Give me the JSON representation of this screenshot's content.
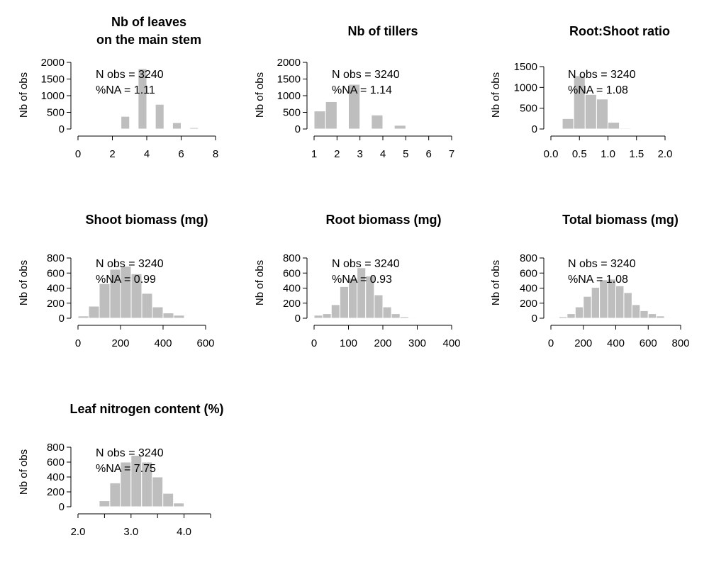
{
  "bar_color": "#bebebe",
  "bar_edge_color": "#ffffff",
  "chart_data": [
    {
      "type": "bar",
      "title_lines": [
        "Nb of leaves",
        "on the main stem"
      ],
      "ylabel": "Nb of obs",
      "annotation": [
        "N obs =  3240",
        "%NA = 1.11"
      ],
      "xlim": [
        0,
        8
      ],
      "ylim": [
        0,
        2000
      ],
      "xticks": [
        0,
        2,
        4,
        6,
        8
      ],
      "xtick_labels": [
        "0",
        "2",
        "4",
        "6",
        "8"
      ],
      "yticks": [
        0,
        500,
        1000,
        1500,
        2000
      ],
      "ytick_labels": [
        "0",
        "500",
        "1000",
        "1500",
        "2000"
      ],
      "bins": [
        [
          2.5,
          3
        ],
        [
          3.5,
          4
        ],
        [
          4.5,
          5
        ],
        [
          5.5,
          6
        ],
        [
          6.5,
          7
        ]
      ],
      "values": [
        380,
        1810,
        740,
        190,
        40
      ]
    },
    {
      "type": "bar",
      "title_lines": [
        "Nb of tillers"
      ],
      "ylabel": "Nb of obs",
      "annotation": [
        "N obs =  3240",
        "%NA = 1.14"
      ],
      "xlim": [
        1,
        7
      ],
      "ylim": [
        0,
        2000
      ],
      "xticks": [
        1,
        2,
        3,
        4,
        5,
        6,
        7
      ],
      "xtick_labels": [
        "1",
        "2",
        "3",
        "4",
        "5",
        "6",
        "7"
      ],
      "yticks": [
        0,
        500,
        1000,
        1500,
        2000
      ],
      "ytick_labels": [
        "0",
        "500",
        "1000",
        "1500",
        "2000"
      ],
      "bins": [
        [
          1,
          1.5
        ],
        [
          1.5,
          2
        ],
        [
          2.5,
          3
        ],
        [
          3.5,
          4
        ],
        [
          4.5,
          5
        ]
      ],
      "values": [
        540,
        820,
        1340,
        420,
        110
      ]
    },
    {
      "type": "bar",
      "title_lines": [
        "Root:Shoot ratio"
      ],
      "ylabel": "Nb of obs",
      "annotation": [
        "N obs =  3240",
        "%NA = 1.08"
      ],
      "xlim": [
        0,
        2
      ],
      "ylim": [
        0,
        1500
      ],
      "xticks": [
        0,
        0.5,
        1,
        1.5,
        2
      ],
      "xtick_labels": [
        "0.0",
        "0.5",
        "1.0",
        "1.5",
        "2.0"
      ],
      "yticks": [
        0,
        500,
        1000,
        1500
      ],
      "ytick_labels": [
        "0",
        "500",
        "1000",
        "1500"
      ],
      "bins": [
        [
          0.2,
          0.4
        ],
        [
          0.4,
          0.6
        ],
        [
          0.6,
          0.8
        ],
        [
          0.8,
          1.0
        ],
        [
          1.0,
          1.2
        ],
        [
          1.2,
          1.4
        ]
      ],
      "values": [
        250,
        1280,
        830,
        720,
        160,
        20
      ]
    },
    {
      "type": "bar",
      "title_lines": [
        "Shoot biomass (mg)"
      ],
      "ylabel": "Nb of obs",
      "annotation": [
        "N obs =  3240",
        "%NA = 0.99"
      ],
      "xlim": [
        0,
        600
      ],
      "ylim": [
        0,
        800
      ],
      "xticks": [
        0,
        200,
        400,
        600
      ],
      "xtick_labels": [
        "0",
        "200",
        "400",
        "600"
      ],
      "yticks": [
        0,
        200,
        400,
        600,
        800
      ],
      "ytick_labels": [
        "0",
        "200",
        "400",
        "600",
        "800"
      ],
      "bins": [
        [
          0,
          50
        ],
        [
          50,
          100
        ],
        [
          100,
          150
        ],
        [
          150,
          200
        ],
        [
          200,
          250
        ],
        [
          250,
          300
        ],
        [
          300,
          350
        ],
        [
          350,
          400
        ],
        [
          400,
          450
        ],
        [
          450,
          500
        ]
      ],
      "values": [
        30,
        160,
        460,
        650,
        690,
        590,
        330,
        150,
        70,
        40
      ]
    },
    {
      "type": "bar",
      "title_lines": [
        "Root biomass (mg)"
      ],
      "ylabel": "Nb of obs",
      "annotation": [
        "N obs =  3240",
        "%NA = 0.93"
      ],
      "xlim": [
        0,
        400
      ],
      "ylim": [
        0,
        800
      ],
      "xticks": [
        0,
        100,
        200,
        300,
        400
      ],
      "xtick_labels": [
        "0",
        "100",
        "200",
        "300",
        "400"
      ],
      "yticks": [
        0,
        200,
        400,
        600,
        800
      ],
      "ytick_labels": [
        "0",
        "200",
        "400",
        "600",
        "800"
      ],
      "bins": [
        [
          0,
          25
        ],
        [
          25,
          50
        ],
        [
          50,
          75
        ],
        [
          75,
          100
        ],
        [
          100,
          125
        ],
        [
          125,
          150
        ],
        [
          150,
          175
        ],
        [
          175,
          200
        ],
        [
          200,
          225
        ],
        [
          225,
          250
        ],
        [
          250,
          275
        ],
        [
          275,
          300
        ]
      ],
      "values": [
        40,
        60,
        180,
        420,
        530,
        670,
        560,
        310,
        150,
        60,
        20,
        10
      ]
    },
    {
      "type": "bar",
      "title_lines": [
        "Total biomass (mg)"
      ],
      "ylabel": "Nb of obs",
      "annotation": [
        "N obs =  3240",
        "%NA = 1.08"
      ],
      "xlim": [
        0,
        800
      ],
      "ylim": [
        0,
        800
      ],
      "xticks": [
        0,
        200,
        400,
        600,
        800
      ],
      "xtick_labels": [
        "0",
        "200",
        "400",
        "600",
        "800"
      ],
      "yticks": [
        0,
        200,
        400,
        600,
        800
      ],
      "ytick_labels": [
        "0",
        "200",
        "400",
        "600",
        "800"
      ],
      "bins": [
        [
          0,
          50
        ],
        [
          50,
          100
        ],
        [
          100,
          150
        ],
        [
          150,
          200
        ],
        [
          200,
          250
        ],
        [
          250,
          300
        ],
        [
          300,
          350
        ],
        [
          350,
          400
        ],
        [
          400,
          450
        ],
        [
          450,
          500
        ],
        [
          500,
          550
        ],
        [
          550,
          600
        ],
        [
          600,
          650
        ],
        [
          650,
          700
        ],
        [
          700,
          750
        ]
      ],
      "values": [
        10,
        20,
        60,
        150,
        290,
        410,
        510,
        520,
        430,
        340,
        180,
        100,
        60,
        30,
        10
      ]
    },
    {
      "type": "bar",
      "title_lines": [
        "Leaf nitrogen content (%)"
      ],
      "ylabel": "Nb of obs",
      "annotation": [
        "N obs =  3240",
        "%NA = 7.75"
      ],
      "xlim": [
        2,
        4.5
      ],
      "ylim": [
        0,
        800
      ],
      "xticks": [
        2,
        2.5,
        3,
        3.5,
        4,
        4.5
      ],
      "xtick_labels": [
        "2.0",
        "",
        "3.0",
        "",
        "4.0",
        ""
      ],
      "yticks": [
        0,
        200,
        400,
        600,
        800
      ],
      "ytick_labels": [
        "0",
        "200",
        "400",
        "600",
        "800"
      ],
      "bins": [
        [
          2.4,
          2.6
        ],
        [
          2.6,
          2.8
        ],
        [
          2.8,
          3.0
        ],
        [
          3.0,
          3.2
        ],
        [
          3.2,
          3.4
        ],
        [
          3.4,
          3.6
        ],
        [
          3.6,
          3.8
        ],
        [
          3.8,
          4.0
        ]
      ],
      "values": [
        80,
        320,
        600,
        690,
        600,
        400,
        180,
        50
      ]
    }
  ]
}
